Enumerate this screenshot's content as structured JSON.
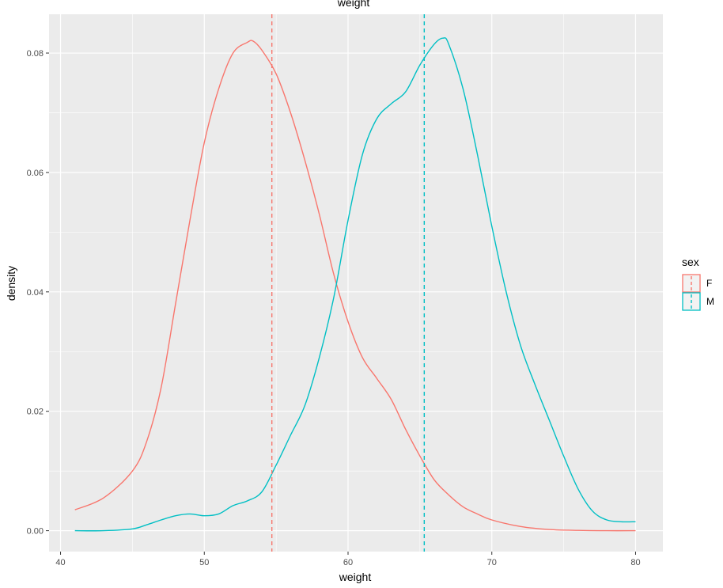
{
  "chart_data": {
    "type": "line",
    "title": "weight",
    "xlabel": "weight",
    "ylabel": "density",
    "xlim": [
      39.2,
      81.9
    ],
    "ylim": [
      -0.0035,
      0.0865
    ],
    "x_ticks": [
      40,
      50,
      60,
      70,
      80
    ],
    "x_tick_labels": [
      "40",
      "50",
      "60",
      "70",
      "80"
    ],
    "y_ticks": [
      0.0,
      0.02,
      0.04,
      0.06,
      0.08
    ],
    "y_tick_labels": [
      "0.00",
      "0.02",
      "0.04",
      "0.06",
      "0.08"
    ],
    "grid": true,
    "legend": {
      "title": "sex",
      "position": "right"
    },
    "series": [
      {
        "name": "F",
        "color": "#F8766D",
        "mean": 54.7,
        "x": [
          41,
          43,
          45,
          46,
          47,
          48,
          49,
          50,
          51,
          52,
          53,
          53.4,
          54,
          55,
          56,
          57,
          58,
          59,
          60,
          61,
          62,
          63,
          64,
          65,
          66,
          67,
          68,
          69,
          70,
          72,
          74,
          76,
          78,
          80
        ],
        "y": [
          0.0035,
          0.0055,
          0.01,
          0.015,
          0.024,
          0.038,
          0.052,
          0.065,
          0.074,
          0.08,
          0.0818,
          0.082,
          0.0805,
          0.0765,
          0.07,
          0.062,
          0.053,
          0.043,
          0.035,
          0.029,
          0.0255,
          0.022,
          0.017,
          0.0125,
          0.0085,
          0.006,
          0.004,
          0.0028,
          0.0018,
          0.0007,
          0.0002,
          5e-05,
          0.0,
          0.0
        ]
      },
      {
        "name": "M",
        "color": "#00BFC4",
        "mean": 65.3,
        "x": [
          41,
          43,
          45,
          46,
          47,
          48,
          49,
          50,
          51,
          52,
          53,
          54,
          55,
          56,
          57,
          58,
          59,
          60,
          61,
          62,
          63,
          64,
          65,
          66,
          66.6,
          67,
          68,
          69,
          70,
          71,
          72,
          73,
          74,
          75,
          76,
          77,
          78,
          79,
          80
        ],
        "y": [
          0.0,
          0.0,
          0.0003,
          0.001,
          0.0018,
          0.0025,
          0.0028,
          0.0025,
          0.0028,
          0.0042,
          0.005,
          0.0065,
          0.011,
          0.016,
          0.021,
          0.029,
          0.039,
          0.052,
          0.063,
          0.069,
          0.0715,
          0.0735,
          0.078,
          0.0815,
          0.0825,
          0.0815,
          0.074,
          0.063,
          0.051,
          0.04,
          0.031,
          0.0245,
          0.0185,
          0.0125,
          0.007,
          0.0033,
          0.0018,
          0.0015,
          0.0015
        ]
      }
    ]
  }
}
